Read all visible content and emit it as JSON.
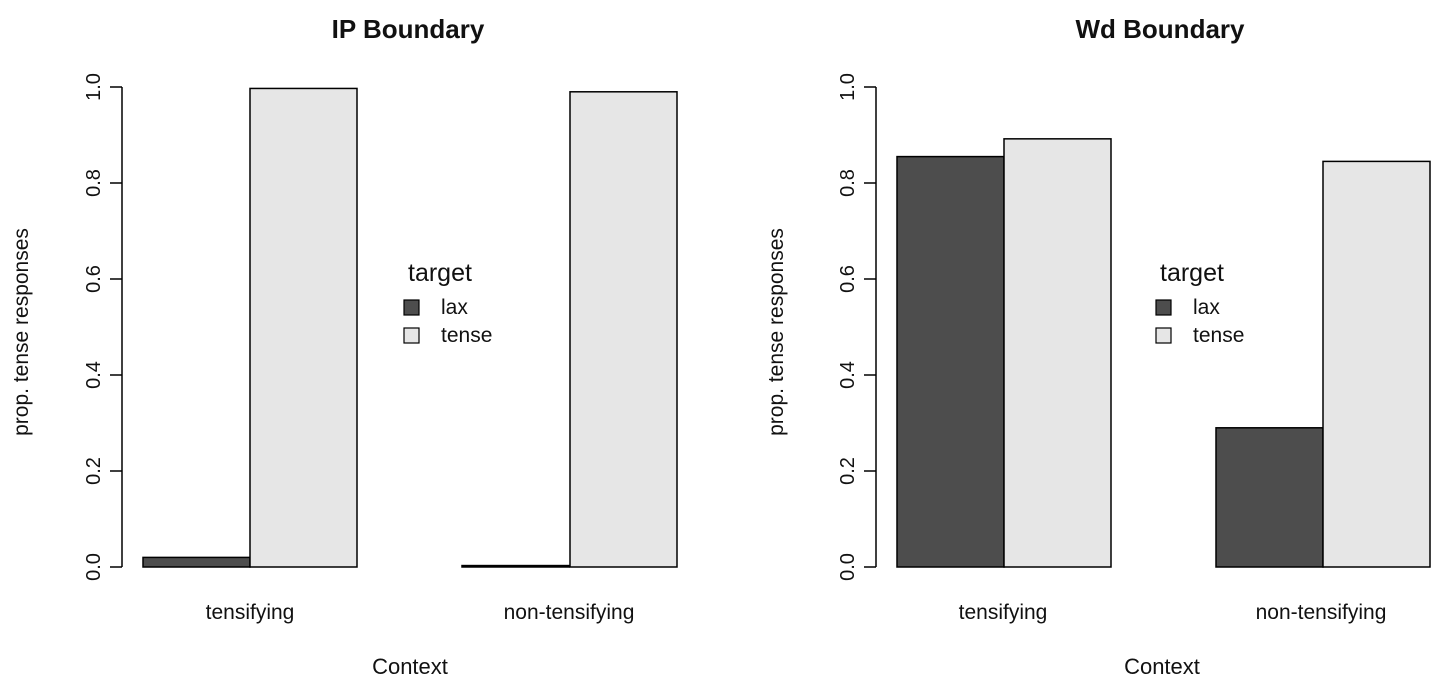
{
  "chart_data": [
    {
      "type": "bar",
      "title": "IP Boundary",
      "xlabel": "Context",
      "ylabel": "prop. tense responses",
      "categories": [
        "tensifying",
        "non-tensifying"
      ],
      "series": [
        {
          "name": "lax",
          "values": [
            0.02,
            0.003
          ]
        },
        {
          "name": "tense",
          "values": [
            0.997,
            0.99
          ]
        }
      ],
      "ylim": [
        0,
        1
      ],
      "yticks": [
        "0.0",
        "0.2",
        "0.4",
        "0.6",
        "0.8",
        "1.0"
      ],
      "legend": {
        "title": "target",
        "placement": "center"
      },
      "grid": false
    },
    {
      "type": "bar",
      "title": "Wd Boundary",
      "xlabel": "Context",
      "ylabel": "prop. tense responses",
      "categories": [
        "tensifying",
        "non-tensifying"
      ],
      "series": [
        {
          "name": "lax",
          "values": [
            0.855,
            0.29
          ]
        },
        {
          "name": "tense",
          "values": [
            0.892,
            0.845
          ]
        }
      ],
      "ylim": [
        0,
        1
      ],
      "yticks": [
        "0.0",
        "0.2",
        "0.4",
        "0.6",
        "0.8",
        "1.0"
      ],
      "legend": {
        "title": "target",
        "placement": "center"
      },
      "grid": false
    }
  ],
  "colors": {
    "lax": "#4d4d4d",
    "tense": "#e6e6e6",
    "stroke": "#000000"
  }
}
